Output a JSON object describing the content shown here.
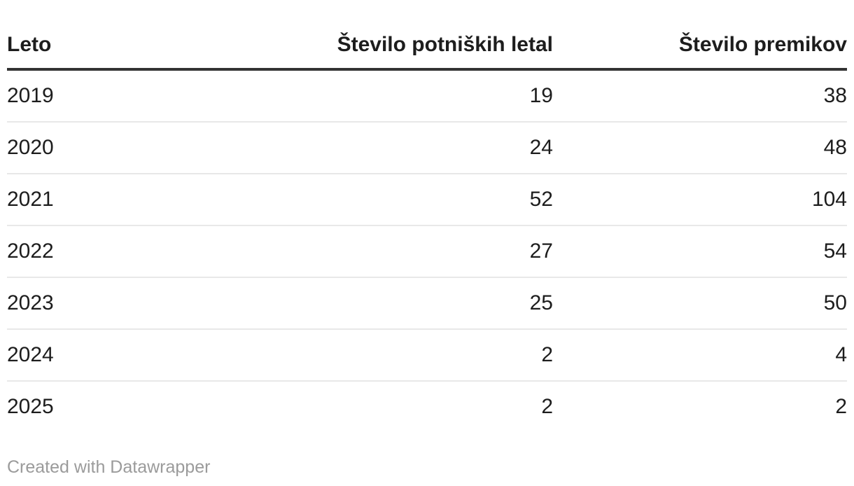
{
  "chart_data": {
    "type": "table",
    "columns": [
      "Leto",
      "Število potniških letal",
      "Število premikov"
    ],
    "column_alignments": [
      "left",
      "right",
      "right"
    ],
    "rows": [
      [
        "2019",
        "19",
        "38"
      ],
      [
        "2020",
        "24",
        "48"
      ],
      [
        "2021",
        "52",
        "104"
      ],
      [
        "2022",
        "27",
        "54"
      ],
      [
        "2023",
        "25",
        "50"
      ],
      [
        "2024",
        "2",
        "4"
      ],
      [
        "2025",
        "2",
        "2"
      ]
    ]
  },
  "footer": {
    "attribution": "Created with Datawrapper"
  },
  "colors": {
    "background": "#ffffff",
    "text": "#1d1d1d",
    "header_border": "#333333",
    "row_divider": "#e8e8e8",
    "attribution_text": "#9b9b9b"
  }
}
